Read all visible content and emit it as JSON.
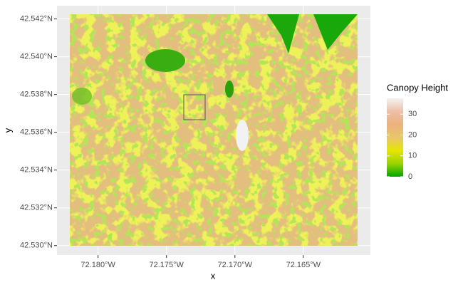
{
  "chart_data": {
    "type": "raster",
    "x_label": "x",
    "y_label": "y",
    "xlim": [
      -72.183,
      -72.1601
    ],
    "ylim": [
      42.5295,
      42.5427
    ],
    "xticks": [
      {
        "value": -72.18,
        "label": "72.180°W"
      },
      {
        "value": -72.175,
        "label": "72.175°W"
      },
      {
        "value": -72.17,
        "label": "72.170°W"
      },
      {
        "value": -72.165,
        "label": "72.165°W"
      }
    ],
    "yticks": [
      {
        "value": 42.53,
        "label": "42.530°N"
      },
      {
        "value": 42.532,
        "label": "42.532°N"
      },
      {
        "value": 42.534,
        "label": "42.534°N"
      },
      {
        "value": 42.536,
        "label": "42.536°N"
      },
      {
        "value": 42.538,
        "label": "42.538°N"
      },
      {
        "value": 42.54,
        "label": "42.540°N"
      },
      {
        "value": 42.542,
        "label": "42.542°N"
      }
    ],
    "grid": true,
    "colorbar": {
      "title": "Canopy Height",
      "lim": [
        0,
        37.6
      ],
      "ticks": [
        0,
        10,
        20,
        30
      ],
      "colors": [
        "#00a600",
        "#9ad300",
        "#e6e600",
        "#e8c56e",
        "#ebb27c",
        "#eebfa8",
        "#f2f2f2"
      ]
    }
  }
}
